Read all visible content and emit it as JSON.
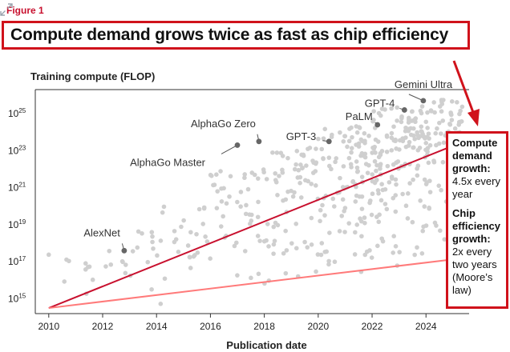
{
  "figure_label": "Figure 1",
  "title": "Compute demand grows twice as fast as chip efficiency",
  "annotation": {
    "compute_heading": "Compute demand growth:",
    "compute_text": "4.5x every year",
    "chip_heading": "Chip efficiency growth:",
    "chip_text": "2x every two years (Moore’s law)"
  },
  "icons": {
    "expand": "expand-arrows-icon",
    "arrow": "red-arrow-icon"
  },
  "colors": {
    "compute_line": "#c8102e",
    "chip_line": "#ff7a7a",
    "points": "#cfcfcf",
    "labeled_points": "#666666",
    "highlight": "#d0121b"
  },
  "chart_data": {
    "type": "scatter",
    "ylabel": "Training compute (FLOP)",
    "xlabel": "Publication date",
    "xlim": [
      2009.5,
      2025.6
    ],
    "ylim_log10": [
      14.2,
      26.3
    ],
    "y_scale": "log",
    "x_ticks": [
      2010,
      2012,
      2014,
      2016,
      2018,
      2020,
      2022,
      2024
    ],
    "y_tick_base": "10",
    "y_tick_exponents": [
      "15",
      "17",
      "19",
      "21",
      "23",
      "25"
    ],
    "lines": [
      {
        "name": "Compute demand growth",
        "x": [
          2010,
          2025.4
        ],
        "log10_y": [
          14.5,
          23.5
        ]
      },
      {
        "name": "Chip efficiency growth",
        "x": [
          2010,
          2025.4
        ],
        "log10_y": [
          14.5,
          17.2
        ]
      }
    ],
    "labeled_points": [
      {
        "label": "AlexNet",
        "x": 2012.8,
        "log10_y": 17.6
      },
      {
        "label": "AlphaGo Master",
        "x": 2017.0,
        "log10_y": 23.3
      },
      {
        "label": "AlphaGo Zero",
        "x": 2017.8,
        "log10_y": 23.5
      },
      {
        "label": "GPT-3",
        "x": 2020.4,
        "log10_y": 23.5
      },
      {
        "label": "PaLM",
        "x": 2022.2,
        "log10_y": 24.4
      },
      {
        "label": "GPT-4",
        "x": 2023.2,
        "log10_y": 25.2
      },
      {
        "label": "Gemini Ultra",
        "x": 2023.9,
        "log10_y": 25.7
      }
    ],
    "scatter_density": [
      {
        "range": [
          2010,
          2012
        ],
        "count": 10,
        "log10_y_range": [
          14.6,
          17.5
        ]
      },
      {
        "range": [
          2012,
          2014
        ],
        "count": 18,
        "log10_y_range": [
          14.5,
          18.8
        ]
      },
      {
        "range": [
          2014,
          2016
        ],
        "count": 28,
        "log10_y_range": [
          14.5,
          20.2
        ]
      },
      {
        "range": [
          2016,
          2018
        ],
        "count": 45,
        "log10_y_range": [
          15.0,
          22.0
        ]
      },
      {
        "range": [
          2018,
          2020
        ],
        "count": 75,
        "log10_y_range": [
          15.2,
          23.2
        ]
      },
      {
        "range": [
          2020,
          2022
        ],
        "count": 110,
        "log10_y_range": [
          15.5,
          24.4
        ]
      },
      {
        "range": [
          2022,
          2024
        ],
        "count": 150,
        "log10_y_range": [
          16.5,
          25.4
        ]
      },
      {
        "range": [
          2024,
          2025.4
        ],
        "count": 95,
        "log10_y_range": [
          17.2,
          25.8
        ]
      }
    ]
  }
}
